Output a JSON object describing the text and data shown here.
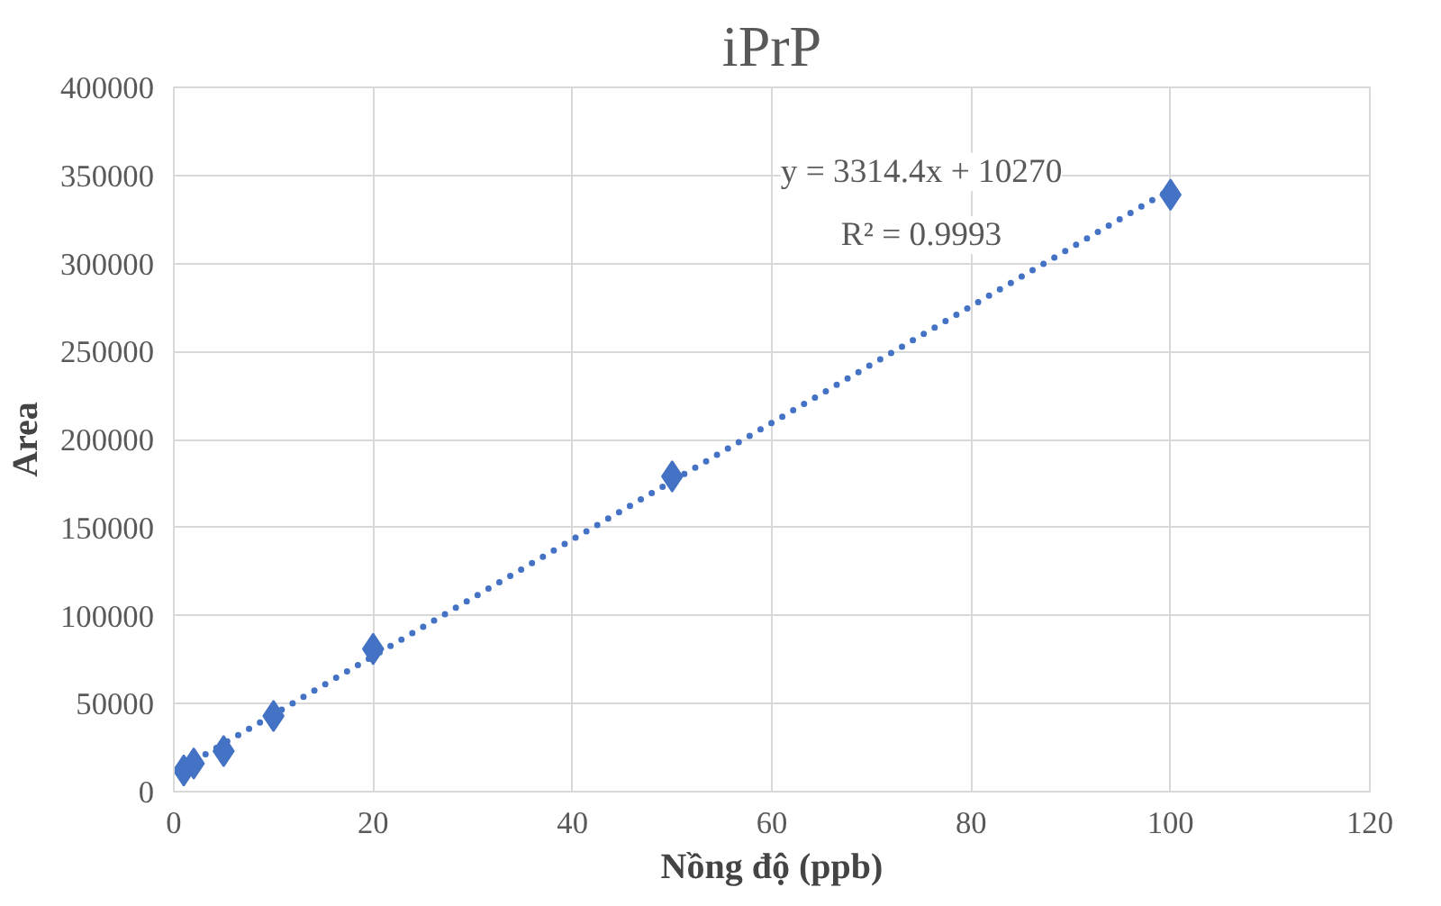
{
  "chart_data": {
    "type": "scatter",
    "title": "iPrP",
    "xlabel": "Nồng độ (ppb)",
    "ylabel": "Area",
    "x": [
      1,
      2,
      5,
      10,
      20,
      50,
      100
    ],
    "series": [
      {
        "color": "#4472c4",
        "marker": "diamond",
        "values": [
          12000,
          16000,
          23000,
          43000,
          81000,
          179000,
          339000
        ]
      },
      {
        "type": "line",
        "color": "#4472c4",
        "line_style": "dotted",
        "marker": "none",
        "x": [
          1,
          100
        ],
        "values": [
          14000,
          342000
        ]
      }
    ],
    "annotations": [
      "y = 3314.4x + 10270",
      "R² = 0.9993"
    ],
    "xlim": [
      0,
      120
    ],
    "xticks": [
      0,
      20,
      40,
      60,
      80,
      100,
      120
    ],
    "ylim": [
      0,
      400000
    ],
    "yticks": [
      0,
      50000,
      100000,
      150000,
      200000,
      250000,
      300000,
      350000,
      400000
    ],
    "grid": true
  }
}
